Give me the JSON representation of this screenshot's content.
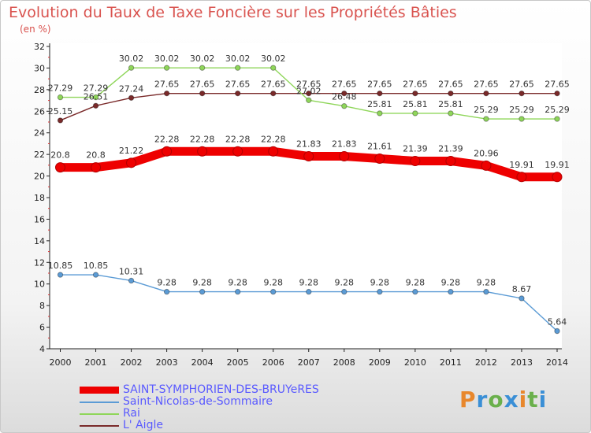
{
  "header": {
    "title": "Evolution du Taux de Taxe Foncière sur les Propriétés Bâties",
    "subtitle": "(en %)"
  },
  "logo": {
    "text": "Proxiti",
    "colors": [
      "#e8872c",
      "#3a8fd6",
      "#6ab04c",
      "#3a8fd6",
      "#e8872c",
      "#6ab04c",
      "#3a8fd6"
    ]
  },
  "chart_data": {
    "type": "line",
    "x": [
      "2000",
      "2001",
      "2002",
      "2003",
      "2004",
      "2005",
      "2006",
      "2007",
      "2008",
      "2009",
      "2010",
      "2011",
      "2012",
      "2013",
      "2014"
    ],
    "ylim": [
      4,
      32
    ],
    "yticks": [
      4,
      6,
      8,
      10,
      12,
      14,
      16,
      18,
      20,
      22,
      24,
      26,
      28,
      30,
      32
    ],
    "grid": false,
    "legend_position": "bottom-left",
    "series": [
      {
        "name": "SAINT-SYMPHORIEN-DES-BRUYeRES",
        "color": "#ee0000",
        "values": [
          20.8,
          20.8,
          21.22,
          22.28,
          22.28,
          22.28,
          22.28,
          21.83,
          21.83,
          21.61,
          21.39,
          21.39,
          20.96,
          19.91,
          19.91
        ],
        "labels": [
          "20.8",
          "20.8",
          "21.22",
          "22.28",
          "22.28",
          "22.28",
          "22.28",
          "21.83",
          "21.83",
          "21.61",
          "21.39",
          "21.39",
          "20.96",
          "19.91",
          "19.91"
        ]
      },
      {
        "name": "Saint-Nicolas-de-Sommaire",
        "color": "#5b9bd5",
        "values": [
          10.85,
          10.85,
          10.31,
          9.28,
          9.28,
          9.28,
          9.28,
          9.28,
          9.28,
          9.28,
          9.28,
          9.28,
          9.28,
          8.67,
          5.64
        ],
        "labels": [
          "10.85",
          "10.85",
          "10.31",
          "9.28",
          "9.28",
          "9.28",
          "9.28",
          "9.28",
          "9.28",
          "9.28",
          "9.28",
          "9.28",
          "9.28",
          "8.67",
          "5.64"
        ]
      },
      {
        "name": "Rai",
        "color": "#8fd65a",
        "values": [
          27.29,
          27.29,
          30.02,
          30.02,
          30.02,
          30.02,
          30.02,
          27.02,
          26.48,
          25.81,
          25.81,
          25.81,
          25.29,
          25.29,
          25.29
        ],
        "labels": [
          "27.29",
          "27.29",
          "30.02",
          "30.02",
          "30.02",
          "30.02",
          "30.02",
          "27.02",
          "26.48",
          "25.81",
          "25.81",
          "25.81",
          "25.29",
          "25.29",
          "25.29"
        ]
      },
      {
        "name": "L' Aigle",
        "color": "#7a2a2a",
        "values": [
          25.15,
          26.51,
          27.24,
          27.65,
          27.65,
          27.65,
          27.65,
          27.65,
          27.65,
          27.65,
          27.65,
          27.65,
          27.65,
          27.65,
          27.65
        ],
        "labels": [
          "25.15",
          "26.51",
          "27.24",
          "27.65",
          "27.65",
          "27.65",
          "27.65",
          "27.65",
          "27.65",
          "27.65",
          "27.65",
          "27.65",
          "27.65",
          "27.65",
          "27.65"
        ]
      }
    ]
  }
}
